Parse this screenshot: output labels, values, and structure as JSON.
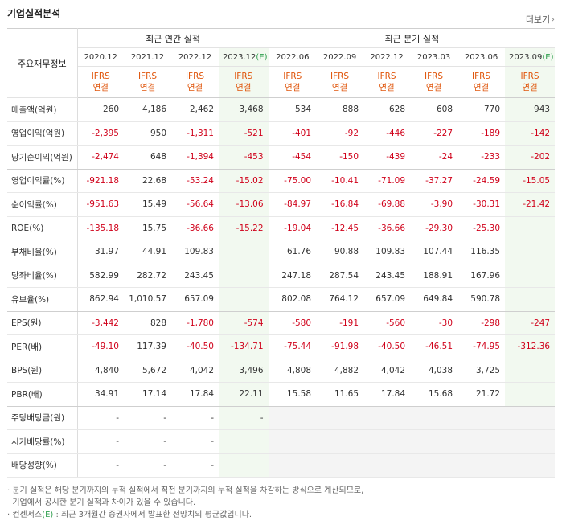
{
  "header": {
    "title": "기업실적분석",
    "more_label": "더보기",
    "more_arrow": "›"
  },
  "table": {
    "row_header_label": "주요재무정보",
    "group_annual": "최근 연간 실적",
    "group_quarter": "최근 분기 실적",
    "annual_periods": [
      "2020.12",
      "2021.12",
      "2022.12",
      "2023.12"
    ],
    "quarter_periods": [
      "2022.06",
      "2022.09",
      "2022.12",
      "2023.03",
      "2023.06",
      "2023.09"
    ],
    "estimate_mark": "(E)",
    "ifrs": "IFRS",
    "consolidated": "연결",
    "rows": [
      {
        "label": "매출액(억원)",
        "values": [
          "260",
          "4,186",
          "2,462",
          "3,468",
          "534",
          "888",
          "628",
          "608",
          "770",
          "943"
        ]
      },
      {
        "label": "영업이익(억원)",
        "values": [
          "-2,395",
          "950",
          "-1,311",
          "-521",
          "-401",
          "-92",
          "-446",
          "-227",
          "-189",
          "-142"
        ]
      },
      {
        "label": "당기순이익(억원)",
        "values": [
          "-2,474",
          "648",
          "-1,394",
          "-453",
          "-454",
          "-150",
          "-439",
          "-24",
          "-233",
          "-202"
        ]
      },
      {
        "label": "영업이익률(%)",
        "values": [
          "-921.18",
          "22.68",
          "-53.24",
          "-15.02",
          "-75.00",
          "-10.41",
          "-71.09",
          "-37.27",
          "-24.59",
          "-15.05"
        ]
      },
      {
        "label": "순이익률(%)",
        "values": [
          "-951.63",
          "15.49",
          "-56.64",
          "-13.06",
          "-84.97",
          "-16.84",
          "-69.88",
          "-3.90",
          "-30.31",
          "-21.42"
        ]
      },
      {
        "label": "ROE(%)",
        "values": [
          "-135.18",
          "15.75",
          "-36.66",
          "-15.22",
          "-19.04",
          "-12.45",
          "-36.66",
          "-29.30",
          "-25.30",
          ""
        ]
      },
      {
        "label": "부채비율(%)",
        "values": [
          "31.97",
          "44.91",
          "109.83",
          "",
          "61.76",
          "90.88",
          "109.83",
          "107.44",
          "116.35",
          ""
        ]
      },
      {
        "label": "당좌비율(%)",
        "values": [
          "582.99",
          "282.72",
          "243.45",
          "",
          "247.18",
          "287.54",
          "243.45",
          "188.91",
          "167.96",
          ""
        ]
      },
      {
        "label": "유보율(%)",
        "values": [
          "862.94",
          "1,010.57",
          "657.09",
          "",
          "802.08",
          "764.12",
          "657.09",
          "649.84",
          "590.78",
          ""
        ]
      },
      {
        "label": "EPS(원)",
        "values": [
          "-3,442",
          "828",
          "-1,780",
          "-574",
          "-580",
          "-191",
          "-560",
          "-30",
          "-298",
          "-247"
        ]
      },
      {
        "label": "PER(배)",
        "values": [
          "-49.10",
          "117.39",
          "-40.50",
          "-134.71",
          "-75.44",
          "-91.98",
          "-40.50",
          "-46.51",
          "-74.95",
          "-312.36"
        ]
      },
      {
        "label": "BPS(원)",
        "values": [
          "4,840",
          "5,672",
          "4,042",
          "3,496",
          "4,808",
          "4,882",
          "4,042",
          "4,038",
          "3,725",
          ""
        ]
      },
      {
        "label": "PBR(배)",
        "values": [
          "34.91",
          "17.14",
          "17.84",
          "22.11",
          "15.58",
          "11.65",
          "17.84",
          "15.68",
          "21.72",
          ""
        ]
      },
      {
        "label": "주당배당금(원)",
        "values": [
          "-",
          "-",
          "-",
          "-",
          "",
          "",
          "",
          "",
          "",
          ""
        ]
      },
      {
        "label": "시가배당률(%)",
        "values": [
          "-",
          "-",
          "-",
          "",
          "",
          "",
          "",
          "",
          "",
          ""
        ]
      },
      {
        "label": "배당성향(%)",
        "values": [
          "-",
          "-",
          "-",
          "",
          "",
          "",
          "",
          "",
          "",
          ""
        ]
      }
    ]
  },
  "notes": {
    "line1": "분기 실적은 해당 분기까지의 누적 실적에서 직전 분기까지의 누적 실적을 차감하는 방식으로 계산되므로,",
    "line2": "기업에서 공시한 분기 실적과 차이가 있을 수 있습니다.",
    "line3_prefix": "컨센서스",
    "line3_mark": "(E)",
    "line3_suffix": ": 최근 3개월간 증권사에서 발표한 전망치의 평균값입니다."
  }
}
